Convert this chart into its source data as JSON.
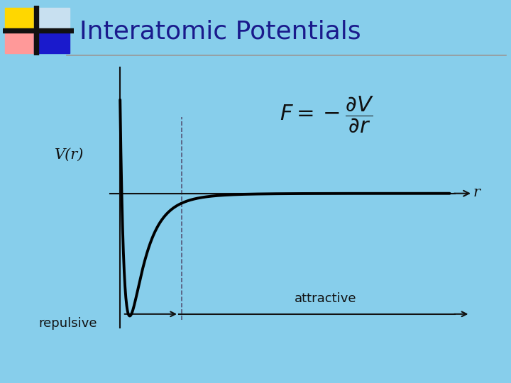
{
  "background_color": "#87CEEB",
  "title": "Interatomic Potentials",
  "title_color": "#1a1a8c",
  "title_fontsize": 26,
  "curve_color": "#000000",
  "curve_linewidth": 2.8,
  "axis_color": "#111111",
  "dashed_color": "#555577",
  "xlabel": "r",
  "ylabel": "V(r)",
  "label_color": "#111111",
  "label_fontsize": 15,
  "repulsive_text": "repulsive",
  "attractive_text": "attractive",
  "arrow_color": "#111111",
  "formula_color": "#111111",
  "logo_yellow": "#FFD700",
  "logo_pink": "#FF9999",
  "logo_blue": "#1a1aCC",
  "logo_white": "#C8E0F0",
  "logo_black": "#111111",
  "separator_color": "#999999"
}
